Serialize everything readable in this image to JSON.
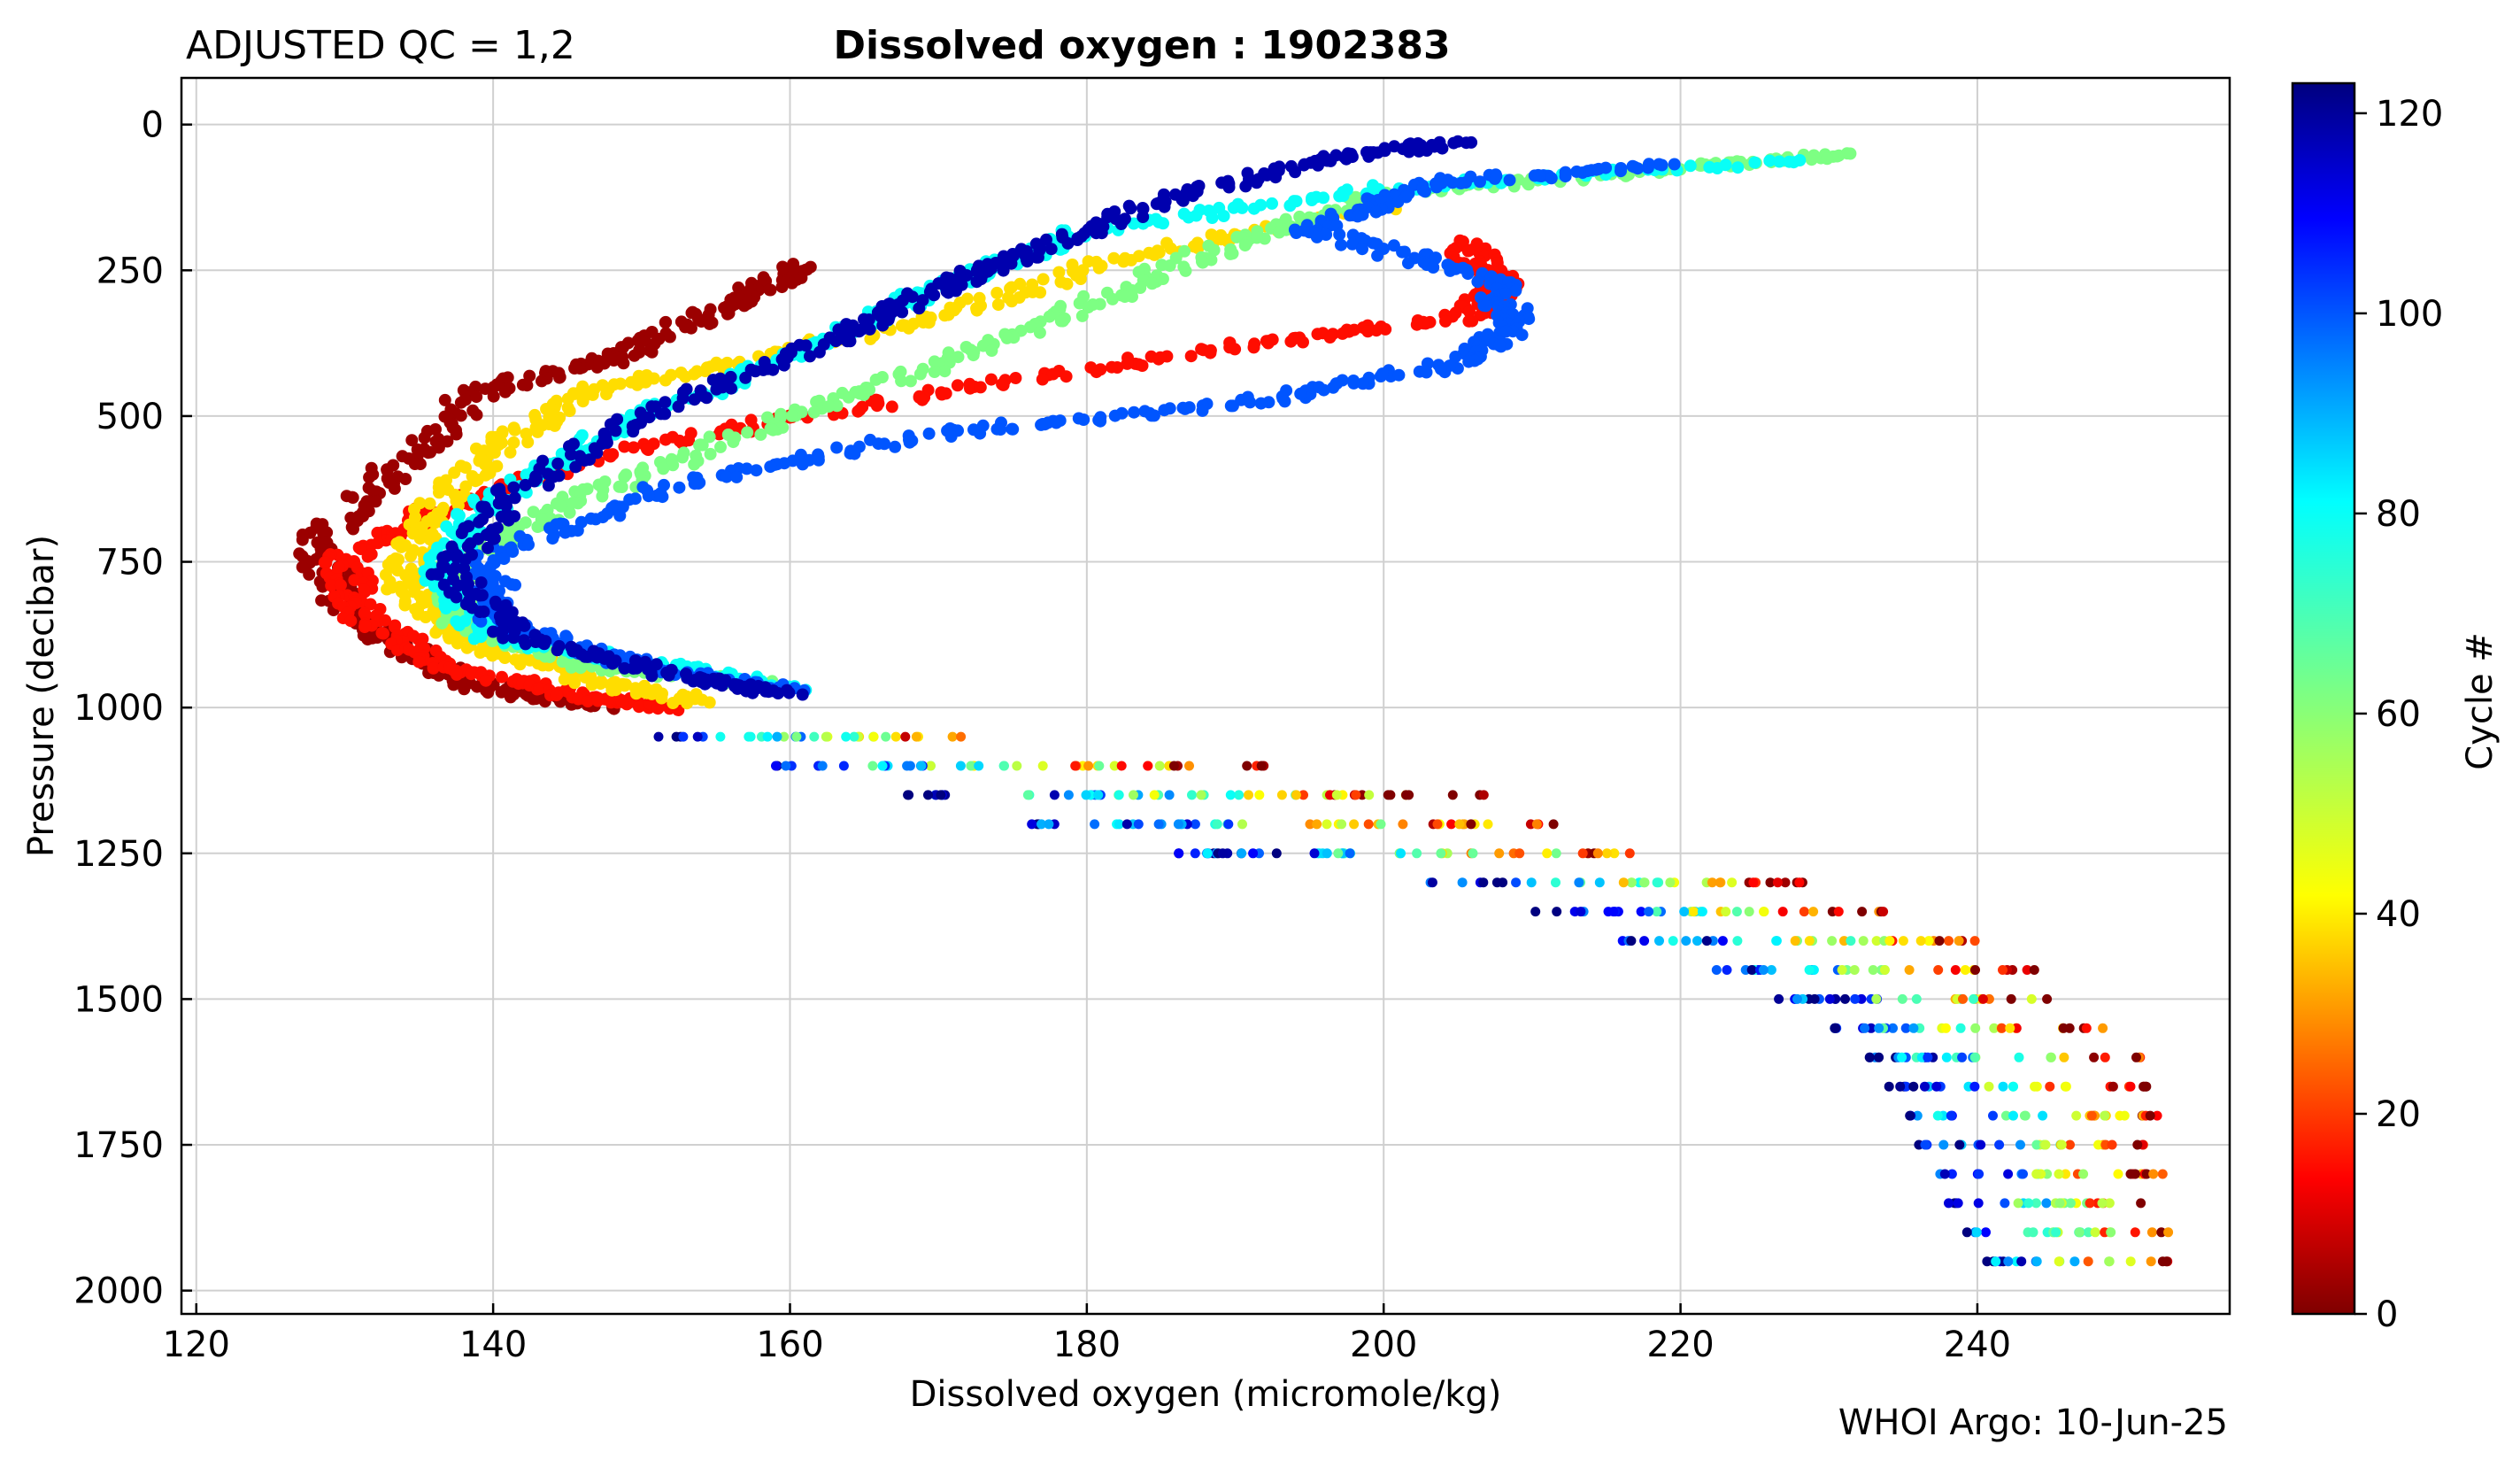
{
  "header": {
    "qc_label": "ADJUSTED QC = 1,2",
    "title": "Dissolved oxygen : 1902383"
  },
  "footer": {
    "credit": "WHOI Argo: 10-Jun-25"
  },
  "colorbar": {
    "label": "Cycle #",
    "range": [
      0,
      123
    ],
    "ticks": [
      "0",
      "20",
      "40",
      "60",
      "80",
      "100",
      "120"
    ],
    "colormap": "jet (reversed: dark red = 0, dark blue = high)",
    "stops": [
      "#7f0000",
      "#ff0000",
      "#ff8000",
      "#ffff00",
      "#80ff80",
      "#00ffff",
      "#0080ff",
      "#0000ff",
      "#00007f"
    ]
  },
  "chart_data": {
    "type": "scatter",
    "title": "Dissolved oxygen : 1902383",
    "xlabel": "Dissolved oxygen  (micromole/kg)",
    "ylabel": "Pressure  (decibar)",
    "xlim": [
      119,
      257
    ],
    "ylim": [
      2040,
      -80
    ],
    "y_inverted": true,
    "grid": true,
    "x_ticks": [
      "120",
      "140",
      "160",
      "180",
      "200",
      "220",
      "240"
    ],
    "y_ticks": [
      "0",
      "250",
      "500",
      "750",
      "1000",
      "1250",
      "1500",
      "1750",
      "2000"
    ],
    "color_by": "Cycle #",
    "profiles_description": "Per-cycle vertical profiles; approximate envelope shown as representative profiles",
    "series": [
      {
        "cycle": 3,
        "points": [
          [
            161,
            240
          ],
          [
            155,
            320
          ],
          [
            148,
            400
          ],
          [
            139,
            460
          ],
          [
            133,
            600
          ],
          [
            128,
            720
          ],
          [
            130,
            830
          ],
          [
            135,
            920
          ],
          [
            140,
            970
          ],
          [
            148,
            1000
          ]
        ]
      },
      {
        "cycle": 15,
        "points": [
          [
            205,
            200
          ],
          [
            208,
            270
          ],
          [
            206,
            330
          ],
          [
            190,
            380
          ],
          [
            170,
            460
          ],
          [
            152,
            540
          ],
          [
            138,
            640
          ],
          [
            130,
            740
          ],
          [
            131,
            840
          ],
          [
            137,
            930
          ],
          [
            146,
            980
          ],
          [
            152,
            1000
          ]
        ]
      },
      {
        "cycle": 38,
        "points": [
          [
            200,
            140
          ],
          [
            182,
            230
          ],
          [
            170,
            330
          ],
          [
            158,
            400
          ],
          [
            146,
            460
          ],
          [
            140,
            560
          ],
          [
            135,
            690
          ],
          [
            134,
            790
          ],
          [
            138,
            880
          ],
          [
            146,
            950
          ],
          [
            154,
            990
          ]
        ]
      },
      {
        "cycle": 62,
        "points": [
          [
            231,
            50
          ],
          [
            218,
            80
          ],
          [
            200,
            120
          ],
          [
            190,
            200
          ],
          [
            180,
            310
          ],
          [
            168,
            430
          ],
          [
            156,
            540
          ],
          [
            145,
            650
          ],
          [
            137,
            760
          ],
          [
            138,
            860
          ],
          [
            147,
            930
          ],
          [
            158,
            960
          ]
        ]
      },
      {
        "cycle": 80,
        "points": [
          [
            228,
            60
          ],
          [
            200,
            110
          ],
          [
            180,
            180
          ],
          [
            170,
            280
          ],
          [
            160,
            400
          ],
          [
            150,
            500
          ],
          [
            140,
            640
          ],
          [
            136,
            760
          ],
          [
            140,
            880
          ],
          [
            152,
            930
          ],
          [
            160,
            970
          ]
        ]
      },
      {
        "cycle": 100,
        "points": [
          [
            220,
            70
          ],
          [
            203,
            100
          ],
          [
            195,
            180
          ],
          [
            207,
            260
          ],
          [
            209,
            340
          ],
          [
            205,
            410
          ],
          [
            190,
            480
          ],
          [
            170,
            530
          ],
          [
            152,
            620
          ],
          [
            140,
            740
          ],
          [
            140,
            850
          ],
          [
            150,
            930
          ],
          [
            160,
            970
          ]
        ]
      },
      {
        "cycle": 118,
        "points": [
          [
            205,
            30
          ],
          [
            196,
            60
          ],
          [
            185,
            130
          ],
          [
            176,
            220
          ],
          [
            170,
            280
          ],
          [
            162,
            380
          ],
          [
            150,
            500
          ],
          [
            141,
            640
          ],
          [
            137,
            770
          ],
          [
            142,
            880
          ],
          [
            153,
            950
          ],
          [
            160,
            975
          ]
        ]
      }
    ],
    "deep_rows": [
      {
        "pressure": 1050,
        "x_min": 151,
        "x_max": 173
      },
      {
        "pressure": 1100,
        "x_min": 157,
        "x_max": 192
      },
      {
        "pressure": 1150,
        "x_min": 167,
        "x_max": 207
      },
      {
        "pressure": 1200,
        "x_min": 176,
        "x_max": 212
      },
      {
        "pressure": 1250,
        "x_min": 185,
        "x_max": 222
      },
      {
        "pressure": 1300,
        "x_min": 203,
        "x_max": 229
      },
      {
        "pressure": 1350,
        "x_min": 210,
        "x_max": 235
      },
      {
        "pressure": 1400,
        "x_min": 216,
        "x_max": 240
      },
      {
        "pressure": 1450,
        "x_min": 222,
        "x_max": 244
      },
      {
        "pressure": 1500,
        "x_min": 226,
        "x_max": 247
      },
      {
        "pressure": 1550,
        "x_min": 229,
        "x_max": 249
      },
      {
        "pressure": 1600,
        "x_min": 232,
        "x_max": 251
      },
      {
        "pressure": 1650,
        "x_min": 234,
        "x_max": 252
      },
      {
        "pressure": 1700,
        "x_min": 235,
        "x_max": 253
      },
      {
        "pressure": 1750,
        "x_min": 236,
        "x_max": 253
      },
      {
        "pressure": 1800,
        "x_min": 237,
        "x_max": 253
      },
      {
        "pressure": 1850,
        "x_min": 238,
        "x_max": 253
      },
      {
        "pressure": 1900,
        "x_min": 239,
        "x_max": 253
      },
      {
        "pressure": 1950,
        "x_min": 240,
        "x_max": 253
      }
    ]
  }
}
